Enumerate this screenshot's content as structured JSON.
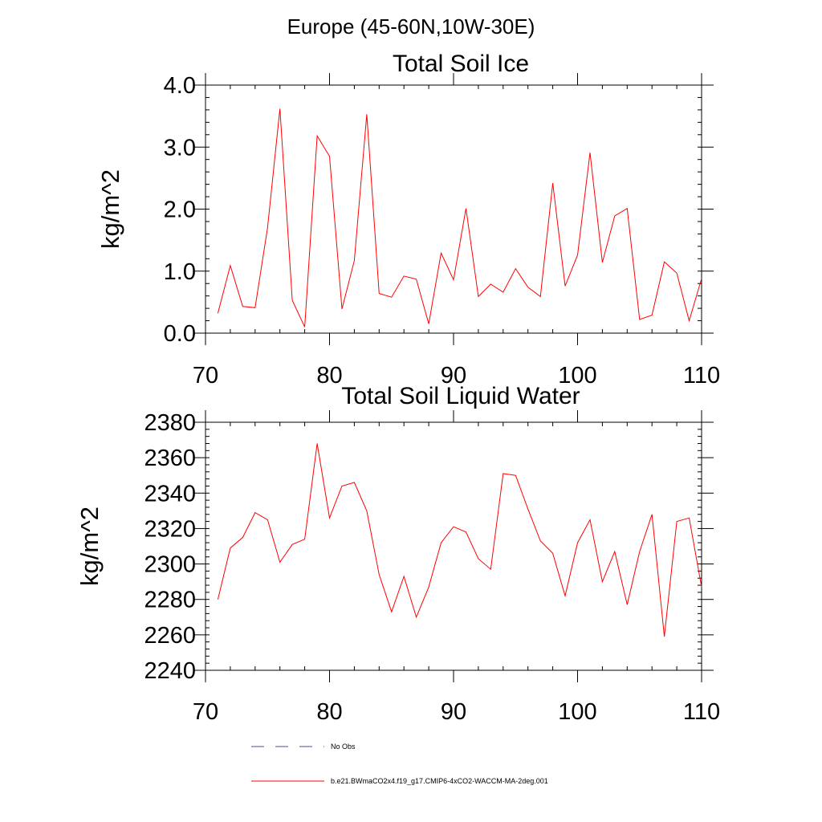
{
  "figure_title": "Europe (45-60N,10W-30E)",
  "legend": {
    "items": [
      {
        "label": "No Obs",
        "style": "dashed",
        "color": "#4a4a9a"
      },
      {
        "label": "b.e21.BWmaCO2x4.f19_g17.CMIP6-4xCO2-WACCM-MA-2deg.001",
        "style": "solid",
        "color": "#ff0000"
      }
    ]
  },
  "chart_data": [
    {
      "type": "line",
      "title": "Total Soil Ice",
      "xlabel": "",
      "ylabel": "kg/m^2",
      "xlim": [
        70,
        110
      ],
      "ylim": [
        0,
        4
      ],
      "xticks": [
        70,
        80,
        90,
        100,
        110
      ],
      "xtick_labels": [
        "70",
        "80",
        "90",
        "100",
        "110"
      ],
      "yticks": [
        0,
        1,
        2,
        3,
        4
      ],
      "ytick_labels": [
        "0.0",
        "1.0",
        "2.0",
        "3.0",
        "4.0"
      ],
      "yminor_step": 0.2,
      "x": [
        71,
        72,
        73,
        74,
        75,
        76,
        77,
        78,
        79,
        80,
        81,
        82,
        83,
        84,
        85,
        86,
        87,
        88,
        89,
        90,
        91,
        92,
        93,
        94,
        95,
        96,
        97,
        98,
        99,
        100,
        101,
        102,
        103,
        104,
        105,
        106,
        107,
        108,
        109,
        110
      ],
      "series": [
        {
          "name": "b.e21.BWmaCO2x4.f19_g17.CMIP6-4xCO2-WACCM-MA-2deg.001",
          "color": "#ff0000",
          "values": [
            0.32,
            1.09,
            0.43,
            0.41,
            1.7,
            3.62,
            0.53,
            0.1,
            3.18,
            2.85,
            0.39,
            1.17,
            3.53,
            0.64,
            0.58,
            0.92,
            0.87,
            0.15,
            1.29,
            0.86,
            2.01,
            0.59,
            0.79,
            0.66,
            1.04,
            0.74,
            0.59,
            2.42,
            0.76,
            1.26,
            2.91,
            1.14,
            1.89,
            2.01,
            0.22,
            0.29,
            1.15,
            0.97,
            0.2,
            0.88
          ]
        }
      ]
    },
    {
      "type": "line",
      "title": "Total Soil Liquid Water",
      "xlabel": "",
      "ylabel": "kg/m^2",
      "xlim": [
        70,
        110
      ],
      "ylim": [
        2240,
        2380
      ],
      "xticks": [
        70,
        80,
        90,
        100,
        110
      ],
      "xtick_labels": [
        "70",
        "80",
        "90",
        "100",
        "110"
      ],
      "yticks": [
        2240,
        2260,
        2280,
        2300,
        2320,
        2340,
        2360,
        2380
      ],
      "ytick_labels": [
        "2240",
        "2260",
        "2280",
        "2300",
        "2320",
        "2340",
        "2360",
        "2380"
      ],
      "yminor_step": 4,
      "x": [
        71,
        72,
        73,
        74,
        75,
        76,
        77,
        78,
        79,
        80,
        81,
        82,
        83,
        84,
        85,
        86,
        87,
        88,
        89,
        90,
        91,
        92,
        93,
        94,
        95,
        96,
        97,
        98,
        99,
        100,
        101,
        102,
        103,
        104,
        105,
        106,
        107,
        108,
        109,
        110
      ],
      "series": [
        {
          "name": "b.e21.BWmaCO2x4.f19_g17.CMIP6-4xCO2-WACCM-MA-2deg.001",
          "color": "#ff0000",
          "values": [
            2280,
            2309,
            2315,
            2329,
            2325,
            2301,
            2311,
            2314,
            2368,
            2326,
            2344,
            2346,
            2330,
            2294,
            2273,
            2293,
            2270,
            2287,
            2312,
            2321,
            2318,
            2303,
            2297,
            2351,
            2350,
            2331,
            2313,
            2306,
            2282,
            2312,
            2325,
            2290,
            2307,
            2277,
            2307,
            2328,
            2259,
            2324,
            2326,
            2287
          ]
        }
      ]
    }
  ]
}
